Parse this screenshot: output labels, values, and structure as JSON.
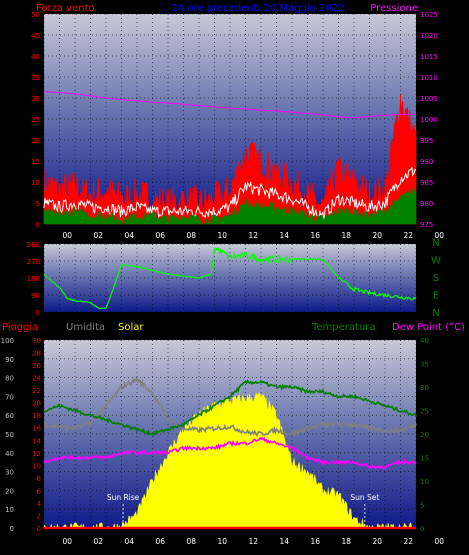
{
  "colors": {
    "wind": "#ff0000",
    "gust": "#ff0000",
    "wind_avg": "#ffffff",
    "wind_low": "#008000",
    "pressure": "#ff00ff",
    "direction": "#00ff00",
    "rain": "#ff0000",
    "humidity": "#808080",
    "solar": "#ffff00",
    "temperature": "#008000",
    "dewpoint": "#ff00ff",
    "title": "#0000ff"
  },
  "chart_data": [
    {
      "type": "line",
      "title": "24 ore precedenti 20 Maggio 2022",
      "left_label": "Forza vento",
      "right_label": "Pressione",
      "x_tick_labels": [
        "00",
        "02",
        "04",
        "06",
        "08",
        "10",
        "12",
        "14",
        "16",
        "18",
        "20",
        "22",
        "00"
      ],
      "ylim_left": [
        0,
        50
      ],
      "y_ticks_left": [
        "0",
        "5",
        "10",
        "15",
        "20",
        "25",
        "30",
        "35",
        "40",
        "45",
        "50"
      ],
      "ylim_right": [
        975,
        1025
      ],
      "y_ticks_right": [
        "975",
        "980",
        "985",
        "990",
        "995",
        "1000",
        "1005",
        "1010",
        "1015",
        "1020",
        "1025"
      ],
      "x_hours": [
        0,
        1,
        2,
        3,
        4,
        5,
        6,
        7,
        8,
        9,
        10,
        11,
        12,
        13,
        14,
        15,
        16,
        17,
        18,
        19,
        20,
        21,
        22,
        23,
        24
      ],
      "series": [
        {
          "name": "Forza vento",
          "key": "gust",
          "axis": "left",
          "values": [
            10,
            8,
            9,
            7,
            8,
            6,
            7,
            6,
            5,
            6,
            5,
            6,
            8,
            17,
            15,
            12,
            10,
            7,
            4,
            13,
            10,
            7,
            8,
            30,
            20
          ]
        },
        {
          "name": "",
          "key": "wind_avg",
          "axis": "left",
          "values": [
            5,
            4,
            5,
            4,
            4,
            3,
            4,
            3,
            3,
            3,
            3,
            3,
            4,
            9,
            8,
            7,
            6,
            4,
            2,
            6,
            5,
            4,
            5,
            11,
            13
          ]
        },
        {
          "name": "",
          "key": "wind_low",
          "axis": "left",
          "values": [
            3,
            2,
            3,
            2,
            2,
            1,
            2,
            2,
            1,
            2,
            1,
            1,
            2,
            5,
            4,
            4,
            3,
            2,
            1,
            3,
            3,
            2,
            3,
            6,
            8
          ]
        },
        {
          "name": "Pressione",
          "key": "pressure",
          "axis": "right",
          "values": [
            1006.5,
            1006.3,
            1006,
            1005.5,
            1005,
            1004.6,
            1004.3,
            1004,
            1003.8,
            1003.5,
            1003.2,
            1002.9,
            1002.6,
            1002.4,
            1002.1,
            1001.9,
            1001.6,
            1001.3,
            1001,
            1000.5,
            1000.3,
            1000.6,
            1000.9,
            1001.1,
            1001.1
          ]
        }
      ]
    },
    {
      "type": "line",
      "right_labels": [
        "N",
        "W",
        "S",
        "E",
        "N"
      ],
      "ylim": [
        0,
        360
      ],
      "y_ticks": [
        "0",
        "90",
        "180",
        "270",
        "360"
      ],
      "x_hours": [
        0,
        1,
        1.5,
        2,
        3,
        3.5,
        4,
        4.5,
        5,
        6,
        7,
        8,
        9,
        10,
        10.8,
        11,
        12,
        13,
        14,
        15,
        16,
        17,
        18,
        19,
        20,
        21,
        22,
        23,
        24
      ],
      "series": [
        {
          "name": "",
          "key": "direction",
          "values": [
            200,
            130,
            70,
            60,
            50,
            20,
            20,
            130,
            250,
            240,
            220,
            200,
            190,
            180,
            200,
            340,
            290,
            300,
            280,
            280,
            280,
            280,
            280,
            180,
            120,
            100,
            90,
            80,
            70
          ]
        }
      ]
    },
    {
      "type": "line",
      "labels": {
        "rain": "Pioggia",
        "humidity": "Umidita",
        "solar": "Solar",
        "temperature": "Temperatura",
        "dewpoint": "Dew Point (°C)"
      },
      "ylim_humidity": [
        0,
        100
      ],
      "y_ticks_humidity": [
        "0",
        "10",
        "20",
        "30",
        "40",
        "50",
        "60",
        "70",
        "80",
        "90",
        "100"
      ],
      "ylim_rain": [
        0,
        30
      ],
      "y_ticks_rain": [
        "0",
        "2",
        "4",
        "6",
        "8",
        "10",
        "12",
        "14",
        "16",
        "18",
        "20",
        "22",
        "24",
        "26",
        "28",
        "30"
      ],
      "ylim_temp": [
        0,
        40
      ],
      "y_ticks_temp": [
        "0",
        "5",
        "10",
        "15",
        "20",
        "25",
        "30",
        "35",
        "40"
      ],
      "x_tick_labels": [
        "00",
        "02",
        "04",
        "06",
        "08",
        "10",
        "12",
        "14",
        "16",
        "18",
        "20",
        "22",
        "00"
      ],
      "annotations": [
        {
          "label": "Sun Rise",
          "x": 5.1
        },
        {
          "label": "Sun Set",
          "x": 20.7
        }
      ],
      "x_hours": [
        0,
        1,
        2,
        3,
        4,
        5,
        6,
        7,
        8,
        9,
        10,
        11,
        12,
        13,
        14,
        15,
        16,
        17,
        18,
        19,
        20,
        21,
        22,
        23,
        24
      ],
      "series": [
        {
          "name": "Umidita",
          "key": "humidity",
          "axis": "humidity",
          "values": [
            55,
            54,
            53,
            56,
            65,
            75,
            79,
            72,
            58,
            53,
            52,
            53,
            54,
            51,
            50,
            52,
            50,
            53,
            55,
            55,
            55,
            53,
            52,
            52,
            55
          ]
        },
        {
          "name": "Temperatura",
          "key": "temperature",
          "axis": "temp",
          "values": [
            25,
            26,
            25,
            24,
            23,
            22,
            21,
            20,
            21,
            22,
            24,
            26,
            28,
            31,
            31,
            30,
            30,
            29,
            29,
            28,
            28,
            27,
            26,
            25,
            24
          ]
        },
        {
          "name": "Dew Point (°C)",
          "key": "dewpoint",
          "axis": "temp",
          "values": [
            14,
            15,
            15,
            15,
            15,
            16,
            16,
            16,
            16,
            17,
            17,
            17,
            18,
            18,
            19,
            18,
            17,
            15,
            14,
            14,
            14,
            13,
            13,
            14,
            14
          ]
        },
        {
          "name": "Solar",
          "key": "solar",
          "axis": "temp",
          "values": [
            0,
            0,
            0,
            0,
            0,
            0.3,
            3,
            10,
            16,
            21,
            24,
            26,
            27,
            27.5,
            28,
            24,
            14,
            12,
            8,
            7,
            2,
            0,
            0,
            0,
            0
          ]
        },
        {
          "name": "Pioggia",
          "key": "rain",
          "axis": "rain",
          "values": [
            0,
            0,
            0,
            0,
            0,
            0,
            0,
            0,
            0,
            0,
            0,
            0,
            0,
            0,
            0,
            0,
            0,
            0,
            0,
            0,
            0,
            0,
            0,
            0,
            0
          ]
        }
      ]
    }
  ]
}
